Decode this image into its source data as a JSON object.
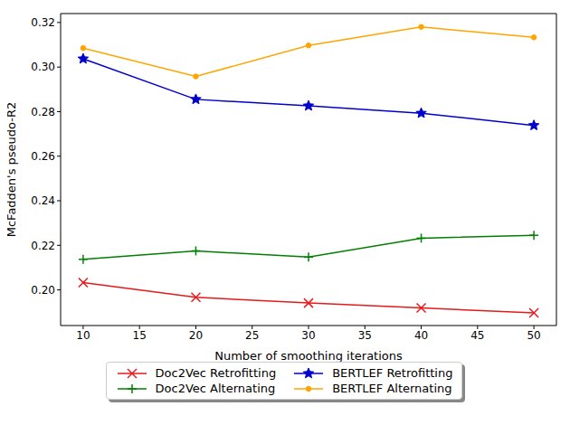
{
  "chart_data": {
    "type": "line",
    "xlabel": "Number of smoothing iterations",
    "ylabel": "McFadden's pseudo-R2",
    "x": [
      10,
      20,
      30,
      40,
      50
    ],
    "xlim": [
      8,
      52
    ],
    "xticks": [
      10,
      15,
      20,
      25,
      30,
      35,
      40,
      45,
      50
    ],
    "ylim": [
      0.184,
      0.324
    ],
    "yticks": [
      {
        "value": 0.2,
        "label": "0.20"
      },
      0.22,
      0.24,
      0.26,
      0.28,
      {
        "value": 0.3,
        "label": "0.30"
      },
      0.32
    ],
    "grid": false,
    "legend": "bottom",
    "series": [
      {
        "name": "Doc2Vec Retrofitting",
        "color": "#e41a1c",
        "marker": "x",
        "values": [
          0.2033,
          0.1967,
          0.1941,
          0.1919,
          0.1897
        ]
      },
      {
        "name": "Doc2Vec Alternating",
        "color": "#008000",
        "marker": "plus",
        "values": [
          0.2137,
          0.2175,
          0.2147,
          0.2232,
          0.2245
        ]
      },
      {
        "name": "BERTLEF Retrofitting",
        "color": "#0000cd",
        "marker": "star",
        "values": [
          0.3037,
          0.2855,
          0.2826,
          0.2793,
          0.2738
        ]
      },
      {
        "name": "BERTLEF Alternating",
        "color": "#ffa500",
        "marker": "circle",
        "values": [
          0.3085,
          0.2958,
          0.3097,
          0.318,
          0.3133
        ]
      }
    ]
  }
}
